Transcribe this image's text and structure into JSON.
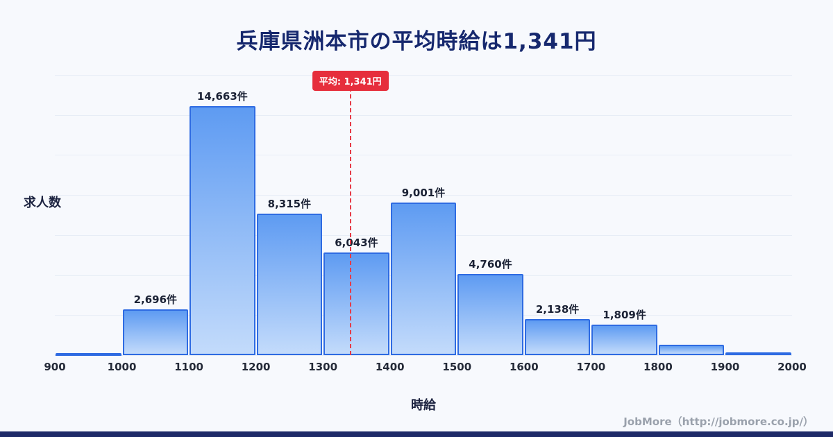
{
  "page": {
    "title": "兵庫県洲本市の平均時給は1,341円",
    "footer_credit": "JobMore（http://jobmore.co.jp/）"
  },
  "colors": {
    "background": "#f7f9fd",
    "title_text": "#16286e",
    "bar_gradient_top": "#5e9bf2",
    "bar_gradient_bottom": "#c3dbfb",
    "bar_border": "#2e6be2",
    "mean_line": "#e63b47",
    "mean_badge_bg": "#e62e3c",
    "axis_text": "#242a38",
    "footer_text": "#9aa1ac",
    "footer_bar": "#1e2a68",
    "grid": "#e7edf6"
  },
  "chart_data": {
    "type": "bar",
    "title": "兵庫県洲本市の平均時給は1,341円",
    "xlabel": "時給",
    "ylabel": "求人数",
    "grid": true,
    "x_range": [
      900,
      2000
    ],
    "ylim": [
      0,
      16500
    ],
    "bin_edges": [
      900,
      1000,
      1100,
      1200,
      1300,
      1400,
      1500,
      1600,
      1700,
      1800,
      1900,
      2000
    ],
    "x_ticks": [
      "900",
      "1000",
      "1100",
      "1200",
      "1300",
      "1400",
      "1500",
      "1600",
      "1700",
      "1800",
      "1900",
      "2000"
    ],
    "values": [
      120,
      2696,
      14663,
      8315,
      6043,
      9001,
      4760,
      2138,
      1809,
      600,
      160
    ],
    "bar_labels": [
      "",
      "2,696件",
      "14,663件",
      "8,315件",
      "6,043件",
      "9,001件",
      "4,760件",
      "2,138件",
      "1,809件",
      "",
      ""
    ],
    "mean_value": 1341,
    "mean_label": "平均: 1,341円"
  }
}
